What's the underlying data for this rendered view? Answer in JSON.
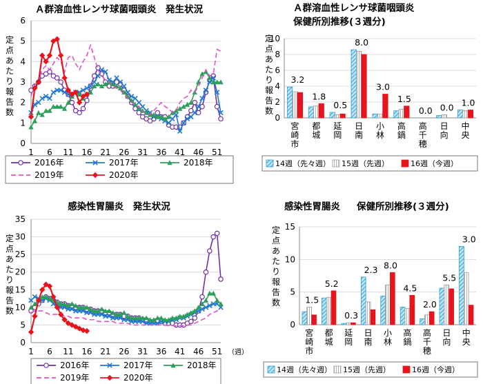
{
  "chart_data": [
    {
      "id": "strep_trend",
      "type": "line",
      "title": "Ａ群溶血性レンサ球菌咽頭炎　発生状況",
      "ylabel": "定点あたり報告数",
      "ylim": [
        0,
        6
      ],
      "yticks": [
        0,
        1,
        2,
        3,
        4,
        5,
        6
      ],
      "xlim": [
        1,
        52
      ],
      "xticks": [
        1,
        6,
        11,
        16,
        21,
        26,
        31,
        36,
        41,
        46,
        51
      ],
      "grid": true,
      "legend": "bottom",
      "series": [
        {
          "name": "2016年",
          "color": "#7030a0",
          "dash": "",
          "marker": "circle",
          "values": [
            2.6,
            2.8,
            3.0,
            3.3,
            3.4,
            3.5,
            3.3,
            3.2,
            3.0,
            2.6,
            2.4,
            2.0,
            1.6,
            1.5,
            1.7,
            2.1,
            2.8,
            3.3,
            3.7,
            3.4,
            3.0,
            2.8,
            2.8,
            3.0,
            2.9,
            2.6,
            2.3,
            2.0,
            1.7,
            1.5,
            1.3,
            1.2,
            1.1,
            1.2,
            1.5,
            1.3,
            1.3,
            0.9,
            0.8,
            0.8,
            0.8,
            1.0,
            1.3,
            1.6,
            2.0,
            1.5,
            1.8,
            2.5,
            3.1,
            3.3,
            1.8,
            1.2
          ]
        },
        {
          "name": "2017年",
          "color": "#1f77d0",
          "dash": "",
          "marker": "x",
          "values": [
            1.5,
            1.9,
            2.0,
            2.2,
            2.3,
            2.2,
            2.5,
            2.6,
            2.6,
            2.5,
            2.4,
            2.4,
            2.5,
            2.5,
            2.6,
            2.7,
            2.8,
            3.0,
            3.3,
            3.6,
            3.5,
            3.1,
            3.0,
            3.2,
            3.0,
            2.8,
            2.5,
            2.3,
            2.2,
            2.0,
            1.8,
            1.6,
            1.5,
            1.3,
            1.3,
            1.2,
            1.1,
            1.0,
            1.2,
            1.4,
            0.6,
            1.0,
            1.2,
            1.3,
            1.5,
            1.8,
            2.2,
            2.6,
            3.0,
            3.2,
            2.5,
            1.5
          ]
        },
        {
          "name": "2018年",
          "color": "#2ca05a",
          "dash": "",
          "marker": "triangle",
          "values": [
            0.8,
            1.1,
            1.5,
            1.4,
            1.6,
            1.6,
            1.8,
            1.8,
            1.8,
            1.7,
            2.0,
            2.3,
            2.5,
            2.4,
            2.2,
            2.4,
            2.5,
            2.8,
            2.9,
            2.8,
            2.9,
            3.0,
            2.9,
            2.8,
            2.7,
            2.5,
            2.3,
            2.1,
            1.9,
            1.7,
            1.6,
            1.5,
            1.4,
            1.4,
            1.3,
            1.3,
            1.2,
            1.3,
            1.5,
            1.6,
            1.7,
            1.8,
            1.9,
            2.0,
            2.5,
            3.0,
            3.4,
            3.5,
            3.2,
            3.0,
            3.0,
            3.0
          ]
        },
        {
          "name": "2019年",
          "color": "#e052c8",
          "dash": "7,4",
          "marker": "",
          "values": [
            2.3,
            2.9,
            3.1,
            3.6,
            3.8,
            3.6,
            3.9,
            4.2,
            4.0,
            3.5,
            4.2,
            4.3,
            3.9,
            3.6,
            4.0,
            4.3,
            4.8,
            4.2,
            3.6,
            3.3,
            3.1,
            3.0,
            2.8,
            2.7,
            2.6,
            2.4,
            2.2,
            2.0,
            1.9,
            1.8,
            1.6,
            1.4,
            1.4,
            1.6,
            1.8,
            2.0,
            1.8,
            1.7,
            1.5,
            1.6,
            2.0,
            2.2,
            2.3,
            2.6,
            2.5,
            2.8,
            3.2,
            3.6,
            3.3,
            3.4,
            4.6,
            4.5
          ]
        },
        {
          "name": "2020年",
          "color": "#e8141c",
          "dash": "",
          "marker": "diamond",
          "values": [
            1.3,
            2.7,
            3.0,
            4.3,
            4.0,
            4.3,
            5.0,
            5.1,
            4.3,
            3.2,
            2.6,
            2.4,
            2.5,
            2.0,
            2.3,
            2.4
          ]
        }
      ]
    },
    {
      "id": "strep_region",
      "type": "bar",
      "title": "Ａ群溶血性レンサ球菌咽頭炎",
      "subtitle": "保健所別推移(３週分)",
      "ylabel": "定点あたり報告数",
      "ylim": [
        0,
        10
      ],
      "yticks": [
        0,
        2,
        4,
        6,
        8,
        10
      ],
      "grid": true,
      "legend": "bottom",
      "categories": [
        "宮崎市",
        "都城",
        "延岡",
        "日南",
        "小林",
        "高鍋",
        "高千穂",
        "日向",
        "中央"
      ],
      "series": [
        {
          "name": "14週（先々週）",
          "pattern": "hatch",
          "color": "#2e9fd8",
          "values": [
            3.9,
            1.4,
            0.7,
            8.6,
            0.5,
            0.9,
            0.0,
            0.3,
            1.0
          ]
        },
        {
          "name": "15週（先週）",
          "pattern": "lines",
          "color": "#9a9a9a",
          "values": [
            3.3,
            1.5,
            0.4,
            8.4,
            0.5,
            1.1,
            0.0,
            0.4,
            0.9
          ]
        },
        {
          "name": "16週（今週）",
          "pattern": "solid",
          "color": "#e8141c",
          "values": [
            3.2,
            1.8,
            0.5,
            8.0,
            3.0,
            1.5,
            0.0,
            0.0,
            1.0
          ]
        }
      ],
      "data_labels": [
        "3.2",
        "1.8",
        "0.5",
        "8.0",
        "3.0",
        "1.5",
        "0.0",
        "0.0",
        "1.0"
      ]
    },
    {
      "id": "gastro_trend",
      "type": "line",
      "title": "感染性胃腸炎　発生状況",
      "ylabel": "定点あたり報告数",
      "xunit": "（週）",
      "ylim": [
        0,
        35
      ],
      "yticks": [
        0,
        5,
        10,
        15,
        20,
        25,
        30,
        35
      ],
      "xlim": [
        1,
        52
      ],
      "xticks": [
        1,
        6,
        11,
        16,
        21,
        26,
        31,
        36,
        41,
        46,
        51
      ],
      "grid": true,
      "legend": "bottom",
      "series": [
        {
          "name": "2016年",
          "color": "#7030a0",
          "dash": "",
          "marker": "circle",
          "values": [
            9,
            10,
            11,
            12,
            13,
            12.5,
            12,
            11.5,
            11,
            11,
            10.5,
            10.5,
            10,
            10,
            10,
            9.5,
            9.5,
            9,
            9,
            9,
            8.5,
            8.5,
            8,
            8,
            8,
            7.5,
            7.5,
            7,
            7,
            7,
            6.5,
            6.5,
            6,
            6,
            6,
            6,
            5.5,
            5.5,
            5.5,
            5,
            5,
            5,
            5.5,
            6,
            7,
            9,
            13,
            20,
            26,
            30,
            31,
            18
          ]
        },
        {
          "name": "2017年",
          "color": "#1f77d0",
          "dash": "",
          "marker": "x",
          "values": [
            12,
            13,
            12.5,
            12,
            12.5,
            12,
            11,
            10.5,
            10,
            10,
            9.5,
            9.5,
            9,
            9,
            9,
            8.5,
            8.5,
            8,
            8,
            8,
            7.5,
            7.5,
            7,
            7,
            7,
            6.5,
            6.5,
            6,
            6,
            6,
            6,
            5.5,
            5.5,
            5.5,
            5.5,
            6,
            6,
            6,
            6.5,
            6.5,
            7,
            7,
            7.5,
            8,
            8.5,
            9,
            9.5,
            10,
            10.5,
            11,
            11,
            10
          ]
        },
        {
          "name": "2018年",
          "color": "#2ca05a",
          "dash": "",
          "marker": "triangle",
          "values": [
            10,
            11,
            12,
            13,
            13,
            12.5,
            12,
            11.5,
            11,
            11,
            10.5,
            11,
            10.5,
            10,
            10,
            10,
            9.5,
            9,
            9,
            9.5,
            9,
            9,
            8.5,
            8,
            8,
            8.5,
            7.5,
            7,
            7,
            7,
            7,
            7,
            6.5,
            6.5,
            7,
            7,
            6.5,
            6.5,
            7,
            7,
            7.5,
            7.5,
            8,
            8.5,
            9,
            10,
            11,
            12,
            14,
            14,
            12,
            11
          ]
        },
        {
          "name": "2019年",
          "color": "#e052c8",
          "dash": "7,4",
          "marker": "",
          "values": [
            8.5,
            9,
            9,
            9,
            8.5,
            8,
            8,
            8,
            8,
            7.5,
            7.5,
            7,
            7,
            7,
            7,
            6.5,
            6.5,
            6.5,
            6,
            6,
            6,
            6,
            6,
            5.5,
            5.5,
            5.5,
            5.5,
            5,
            5,
            5,
            5,
            5,
            5,
            5,
            5,
            5,
            5,
            4.8,
            4.8,
            4.8,
            4.8,
            4.8,
            5,
            5,
            5.5,
            6,
            6.5,
            7,
            8,
            8.5,
            9,
            9.5
          ]
        },
        {
          "name": "2020年",
          "color": "#e8141c",
          "dash": "",
          "marker": "diamond",
          "values": [
            3,
            7.5,
            12,
            15,
            16.5,
            16,
            13,
            10,
            8,
            6.5,
            5.5,
            5,
            4.5,
            4,
            3.5,
            3.3
          ]
        }
      ]
    },
    {
      "id": "gastro_region",
      "type": "bar",
      "title": "感染性胃腸炎",
      "subtitle": "保健所別推移(３週分)",
      "ylabel": "定点あたり報告数",
      "ylim": [
        0,
        15
      ],
      "yticks": [
        0,
        5,
        10,
        15
      ],
      "grid": true,
      "legend": "bottom",
      "categories": [
        "宮崎市",
        "都城",
        "延岡",
        "日南",
        "小林",
        "高鍋",
        "高千穂",
        "日向",
        "中央"
      ],
      "series": [
        {
          "name": "14週（先々週）",
          "pattern": "hatch",
          "color": "#2e9fd8",
          "values": [
            2.0,
            4.1,
            0.2,
            7.3,
            4.4,
            2.7,
            0.9,
            5.6,
            12.0
          ]
        },
        {
          "name": "15週（先週）",
          "pattern": "lines",
          "color": "#9a9a9a",
          "values": [
            2.7,
            4.2,
            0.3,
            3.5,
            6.1,
            2.5,
            1.5,
            6.1,
            8.0
          ]
        },
        {
          "name": "16週（今週）",
          "pattern": "solid",
          "color": "#e8141c",
          "values": [
            1.5,
            5.2,
            0.3,
            2.3,
            8.0,
            4.5,
            2.0,
            5.5,
            3.0
          ]
        }
      ],
      "data_labels": [
        "1.5",
        "5.2",
        "0.3",
        "2.3",
        "8.0",
        "4.5",
        "2.0",
        "5.5",
        "3.0"
      ]
    }
  ]
}
